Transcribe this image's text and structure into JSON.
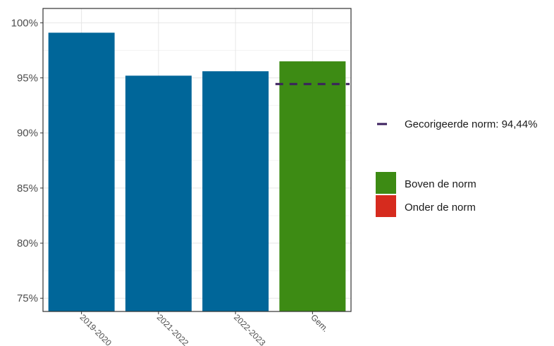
{
  "chart_data": {
    "type": "bar",
    "categories": [
      "2019-2020",
      "2021-2022",
      "2022-2023",
      "Gem."
    ],
    "values": [
      99.1,
      95.2,
      95.6,
      96.5
    ],
    "bar_colors": [
      "#006699",
      "#006699",
      "#006699",
      "#3d8b14"
    ],
    "y_tick_values": [
      75,
      80,
      85,
      90,
      95,
      100
    ],
    "y_tick_labels": [
      "75%",
      "80%",
      "85%",
      "90%",
      "95%",
      "100%"
    ],
    "ylim": [
      73.8,
      101.3
    ],
    "grid": true,
    "reference_line": {
      "value": 94.44,
      "category": "Gem.",
      "color": "#3b1f5e",
      "label": "Gecorigeerde norm: 94,44%"
    },
    "legend": {
      "placement": "right",
      "items": [
        {
          "label": "Boven de norm",
          "color": "#3d8b14"
        },
        {
          "label": "Onder de norm",
          "color": "#d62b1e"
        }
      ]
    }
  }
}
